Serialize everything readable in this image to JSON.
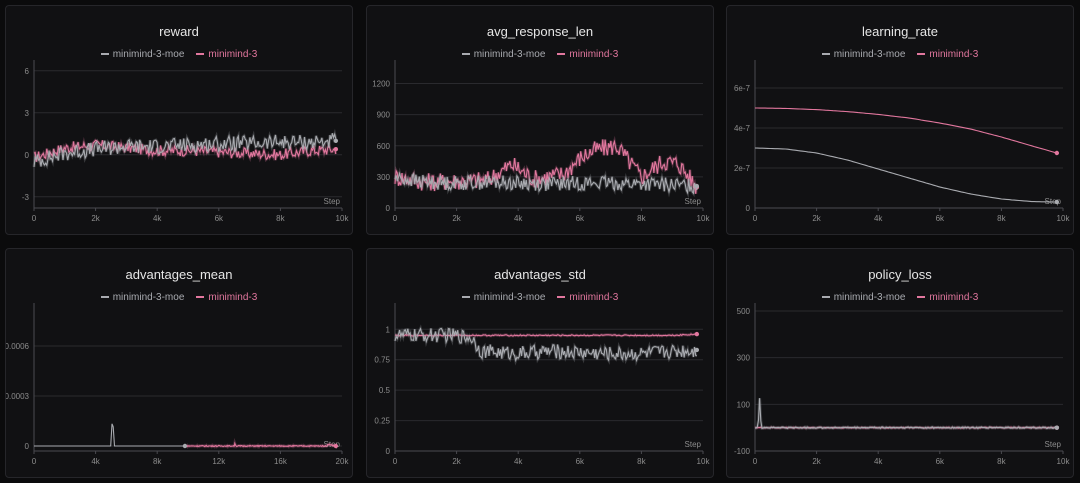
{
  "colors": {
    "moe": "#a9abb0",
    "dense": "#e2779e",
    "grid": "#2a2a2e",
    "axis": "#4a4a50"
  },
  "legend": {
    "moe": "minimind-3-moe",
    "dense": "minimind-3"
  },
  "step_label": "Step",
  "chart_data": [
    {
      "id": "reward",
      "type": "line",
      "title": "reward",
      "x_ticks": [
        0,
        2000,
        4000,
        6000,
        8000,
        10000
      ],
      "x_tick_labels": [
        "0",
        "2k",
        "4k",
        "6k",
        "8k",
        "10k"
      ],
      "y_ticks": [
        -3,
        0,
        3,
        6
      ],
      "y_tick_labels": [
        "-3",
        "0",
        "3",
        "6"
      ],
      "xlim": [
        0,
        10000
      ],
      "ylim": [
        -3.8,
        6.2
      ],
      "series": [
        {
          "name": "minimind-3-moe",
          "x": [
            0,
            1000,
            2000,
            3000,
            4000,
            5000,
            6000,
            7000,
            8000,
            9000,
            9800
          ],
          "y": [
            -0.5,
            0.1,
            0.4,
            0.6,
            0.6,
            0.7,
            0.8,
            0.8,
            0.9,
            0.9,
            1.0
          ],
          "noise": 0.55
        },
        {
          "name": "minimind-3",
          "x": [
            0,
            1000,
            2000,
            3000,
            4000,
            5000,
            6000,
            7000,
            8000,
            9000,
            9800
          ],
          "y": [
            -0.2,
            0.5,
            0.7,
            0.5,
            0.3,
            0.3,
            0.2,
            0.1,
            0.0,
            0.3,
            0.4
          ],
          "noise": 0.4
        }
      ]
    },
    {
      "id": "avg_response_len",
      "type": "line",
      "title": "avg_response_len",
      "x_ticks": [
        0,
        2000,
        4000,
        6000,
        8000,
        10000
      ],
      "x_tick_labels": [
        "0",
        "2k",
        "4k",
        "6k",
        "8k",
        "10k"
      ],
      "y_ticks": [
        0,
        300,
        600,
        900,
        1200
      ],
      "y_tick_labels": [
        "0",
        "300",
        "600",
        "900",
        "1200"
      ],
      "xlim": [
        0,
        10000
      ],
      "ylim": [
        0,
        1350
      ],
      "series": [
        {
          "name": "minimind-3-moe",
          "x": [
            0,
            1000,
            2000,
            3000,
            4000,
            5000,
            6000,
            7000,
            8000,
            9000,
            9800
          ],
          "y": [
            290,
            250,
            240,
            250,
            240,
            230,
            240,
            240,
            230,
            220,
            210
          ],
          "noise": 70
        },
        {
          "name": "minimind-3",
          "x": [
            0,
            1000,
            2000,
            3000,
            3800,
            4500,
            5500,
            6000,
            6500,
            7200,
            8000,
            8700,
            9200,
            9800
          ],
          "y": [
            300,
            250,
            260,
            270,
            420,
            280,
            330,
            480,
            560,
            600,
            300,
            450,
            430,
            200
          ],
          "noise": 90
        }
      ]
    },
    {
      "id": "learning_rate",
      "type": "line",
      "title": "learning_rate",
      "x_ticks": [
        0,
        2000,
        4000,
        6000,
        8000,
        10000
      ],
      "x_tick_labels": [
        "0",
        "2k",
        "4k",
        "6k",
        "8k",
        "10k"
      ],
      "y_ticks": [
        0,
        2e-07,
        4e-07,
        6e-07
      ],
      "y_tick_labels": [
        "0",
        "2e-7",
        "4e-7",
        "6e-7"
      ],
      "xlim": [
        0,
        10000
      ],
      "ylim": [
        0,
        7e-07
      ],
      "series": [
        {
          "name": "minimind-3-moe",
          "x": [
            0,
            1000,
            2000,
            3000,
            4000,
            5000,
            6000,
            7000,
            8000,
            9000,
            9800
          ],
          "y": [
            3e-07,
            2.95e-07,
            2.75e-07,
            2.4e-07,
            1.95e-07,
            1.5e-07,
            1.05e-07,
            7e-08,
            4.5e-08,
            3.2e-08,
            3e-08
          ],
          "noise": 0
        },
        {
          "name": "minimind-3",
          "x": [
            0,
            1000,
            2000,
            3000,
            4000,
            5000,
            6000,
            7000,
            8000,
            9000,
            9800
          ],
          "y": [
            5e-07,
            4.98e-07,
            4.92e-07,
            4.82e-07,
            4.68e-07,
            4.5e-07,
            4.25e-07,
            3.95e-07,
            3.55e-07,
            3.1e-07,
            2.75e-07
          ],
          "noise": 0
        }
      ]
    },
    {
      "id": "advantages_mean",
      "type": "line",
      "title": "advantages_mean",
      "x_ticks": [
        0,
        4000,
        8000,
        12000,
        16000,
        20000
      ],
      "x_tick_labels": [
        "0",
        "4k",
        "8k",
        "12k",
        "16k",
        "20k"
      ],
      "y_ticks": [
        0,
        0.0003,
        0.0006
      ],
      "y_tick_labels": [
        "0",
        "0.0003",
        "0.0006"
      ],
      "xlim": [
        0,
        20000
      ],
      "ylim": [
        -3e-05,
        0.00081
      ],
      "series": [
        {
          "name": "minimind-3-moe",
          "x": [
            0,
            5000,
            5100,
            5200,
            5300,
            9800
          ],
          "y": [
            0,
            0,
            0.00021,
            0,
            0,
            0
          ],
          "noise": 0
        },
        {
          "name": "minimind-3",
          "x": [
            9800,
            13000,
            13050,
            13100,
            16000,
            19000,
            19100,
            19600
          ],
          "y": [
            0,
            0,
            2e-05,
            0,
            0,
            0,
            1e-05,
            0
          ],
          "noise": 3e-06
        }
      ]
    },
    {
      "id": "advantages_std",
      "type": "line",
      "title": "advantages_std",
      "x_ticks": [
        0,
        2000,
        4000,
        6000,
        8000,
        10000
      ],
      "x_tick_labels": [
        "0",
        "2k",
        "4k",
        "6k",
        "8k",
        "10k"
      ],
      "y_ticks": [
        0,
        0.25,
        0.5,
        0.75,
        1
      ],
      "y_tick_labels": [
        "0",
        "0.25",
        "0.5",
        "0.75",
        "1"
      ],
      "xlim": [
        0,
        10000
      ],
      "ylim": [
        0,
        1.15
      ],
      "series": [
        {
          "name": "minimind-3-moe",
          "x": [
            0,
            1000,
            2000,
            2500,
            2800,
            4000,
            5000,
            6000,
            7000,
            8000,
            9000,
            9800
          ],
          "y": [
            0.95,
            0.95,
            0.95,
            0.93,
            0.82,
            0.8,
            0.82,
            0.81,
            0.8,
            0.8,
            0.82,
            0.83
          ],
          "noise": 0.06
        },
        {
          "name": "minimind-3",
          "x": [
            0,
            1000,
            2000,
            3000,
            5000,
            7000,
            9000,
            9800
          ],
          "y": [
            0.95,
            0.95,
            0.95,
            0.95,
            0.95,
            0.95,
            0.95,
            0.96
          ],
          "noise": 0.005
        }
      ]
    },
    {
      "id": "policy_loss",
      "type": "line",
      "title": "policy_loss",
      "x_ticks": [
        0,
        2000,
        4000,
        6000,
        8000,
        10000
      ],
      "x_tick_labels": [
        "0",
        "2k",
        "4k",
        "6k",
        "8k",
        "10k"
      ],
      "y_ticks": [
        -100,
        100,
        300,
        500
      ],
      "y_tick_labels": [
        "-100",
        "100",
        "300",
        "500"
      ],
      "xlim": [
        0,
        10000
      ],
      "ylim": [
        -100,
        500
      ],
      "series": [
        {
          "name": "minimind-3-moe",
          "x": [
            0,
            100,
            150,
            200,
            300,
            1000,
            3000,
            5000,
            6500,
            8000,
            9800
          ],
          "y": [
            0,
            0,
            130,
            0,
            0,
            0,
            0,
            0,
            0,
            0,
            0
          ],
          "noise": 3
        },
        {
          "name": "minimind-3",
          "x": [
            0,
            1000,
            3000,
            5000,
            7000,
            9000,
            9800
          ],
          "y": [
            0,
            0,
            0,
            0,
            0,
            0,
            0
          ],
          "noise": 2
        }
      ]
    }
  ]
}
